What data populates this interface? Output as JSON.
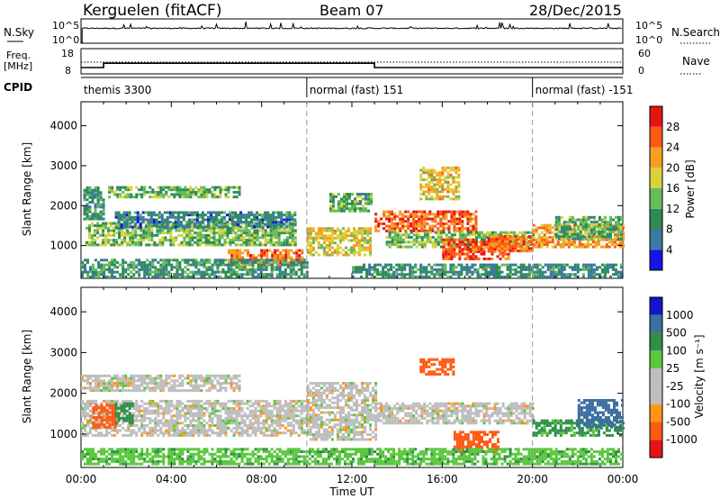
{
  "header": {
    "station": "Kerguelen (fitACF)",
    "beam": "Beam 07",
    "date": "28/Dec/2015"
  },
  "top_panels": {
    "nsky_label": "N.Sky",
    "nsearch_label": "N.Search",
    "nsky_ticks": [
      "10^5",
      "10^0"
    ],
    "freq_label_1": "Freq.",
    "freq_label_2": "[MHz]",
    "freq_ticks": [
      "18",
      "8"
    ],
    "nave_label": "Nave",
    "nave_ticks": [
      "60",
      "0"
    ],
    "cpid_label": "CPID",
    "cpid_modes": [
      {
        "label": "themis 3300",
        "start_hour": 0
      },
      {
        "label": "normal (fast) 151",
        "start_hour": 10
      },
      {
        "label": "normal (fast) -151",
        "start_hour": 20
      }
    ]
  },
  "colors": {
    "power_scale": [
      "#1414e6",
      "#3c78a0",
      "#2e8b57",
      "#66bb5a",
      "#d8d23c",
      "#f5a020",
      "#ff5a14",
      "#e61414"
    ],
    "velocity_scale": [
      "#1414c8",
      "#3c6ea0",
      "#2f8f4a",
      "#5ac83c",
      "#bebebe",
      "#bebebe",
      "#ff9614",
      "#ff5a14",
      "#e61414"
    ]
  },
  "chart_data": [
    {
      "type": "heatmap",
      "panel": "power",
      "ylabel": "Slant Range [km]",
      "xlabel": "Time UT",
      "x_ticks": [
        "00:00",
        "04:00",
        "08:00",
        "12:00",
        "16:00",
        "20:00",
        "00:00"
      ],
      "x_range_hours": [
        0,
        24
      ],
      "y_ticks": [
        1000,
        2000,
        3000,
        4000
      ],
      "ylim": [
        180,
        4600
      ],
      "colorbar_label": "Power [dB]",
      "colorbar_ticks": [
        "4",
        "8",
        "12",
        "16",
        "20",
        "24",
        "28"
      ],
      "colorbar_range": [
        0,
        32
      ],
      "mode_change_hours": [
        10,
        20
      ],
      "echo_regions": [
        {
          "t": [
            0.1,
            1.0
          ],
          "r": [
            1700,
            2500
          ],
          "v": 10
        },
        {
          "t": [
            1.2,
            7.0
          ],
          "r": [
            2250,
            2500
          ],
          "v": 13
        },
        {
          "t": [
            0.2,
            9.5
          ],
          "r": [
            1050,
            1600
          ],
          "v": 14
        },
        {
          "t": [
            1.5,
            9.5
          ],
          "r": [
            1500,
            1900
          ],
          "v": 8
        },
        {
          "t": [
            6.5,
            9.8
          ],
          "r": [
            550,
            950
          ],
          "v": 25
        },
        {
          "t": [
            0.0,
            10.0
          ],
          "r": [
            250,
            700
          ],
          "v": 10
        },
        {
          "t": [
            10.0,
            12.8
          ],
          "r": [
            800,
            1500
          ],
          "v": 19
        },
        {
          "t": [
            11.0,
            12.8
          ],
          "r": [
            1900,
            2350
          ],
          "v": 12
        },
        {
          "t": [
            13.0,
            17.5
          ],
          "r": [
            1400,
            1900
          ],
          "v": 26
        },
        {
          "t": [
            15.0,
            16.8
          ],
          "r": [
            2200,
            3000
          ],
          "v": 20
        },
        {
          "t": [
            13.5,
            20.0
          ],
          "r": [
            1000,
            1400
          ],
          "v": 14
        },
        {
          "t": [
            16.0,
            19.0
          ],
          "r": [
            700,
            1200
          ],
          "v": 27
        },
        {
          "t": [
            18.0,
            20.0
          ],
          "r": [
            900,
            1300
          ],
          "v": 25
        },
        {
          "t": [
            20.0,
            24.0
          ],
          "r": [
            1000,
            1600
          ],
          "v": 22
        },
        {
          "t": [
            21.0,
            24.0
          ],
          "r": [
            1200,
            1800
          ],
          "v": 12
        },
        {
          "t": [
            12.0,
            24.0
          ],
          "r": [
            250,
            600
          ],
          "v": 9
        }
      ]
    },
    {
      "type": "heatmap",
      "panel": "velocity",
      "ylabel": "Slant Range [km]",
      "xlabel": "Time UT",
      "x_ticks": [
        "00:00",
        "04:00",
        "08:00",
        "12:00",
        "16:00",
        "20:00",
        "00:00"
      ],
      "x_range_hours": [
        0,
        24
      ],
      "y_ticks": [
        1000,
        2000,
        3000,
        4000
      ],
      "ylim": [
        180,
        4600
      ],
      "colorbar_label": "Velocity [m s⁻¹]",
      "colorbar_ticks": [
        "1000",
        "500",
        "100",
        "25",
        "-25",
        "-100",
        "-500",
        "-1000"
      ],
      "mode_change_hours": [
        10,
        20
      ],
      "echo_regions": [
        {
          "t": [
            0.0,
            7.0
          ],
          "r": [
            2100,
            2500
          ],
          "v": 0
        },
        {
          "t": [
            0.0,
            10.0
          ],
          "r": [
            1000,
            1900
          ],
          "v": 0
        },
        {
          "t": [
            0.5,
            1.5
          ],
          "r": [
            1200,
            1800
          ],
          "v": -400
        },
        {
          "t": [
            1.5,
            2.3
          ],
          "r": [
            1300,
            1800
          ],
          "v": 150
        },
        {
          "t": [
            10.0,
            13.0
          ],
          "r": [
            900,
            2300
          ],
          "v": 0
        },
        {
          "t": [
            13.0,
            20.0
          ],
          "r": [
            1300,
            1800
          ],
          "v": 0
        },
        {
          "t": [
            15.0,
            16.5
          ],
          "r": [
            2500,
            2900
          ],
          "v": -300
        },
        {
          "t": [
            16.5,
            18.5
          ],
          "r": [
            600,
            1100
          ],
          "v": -200
        },
        {
          "t": [
            20.0,
            24.0
          ],
          "r": [
            1000,
            1400
          ],
          "v": 120
        },
        {
          "t": [
            22.0,
            24.0
          ],
          "r": [
            1200,
            1900
          ],
          "v": 500
        },
        {
          "t": [
            0.0,
            24.0
          ],
          "r": [
            300,
            700
          ],
          "v": 80
        }
      ]
    }
  ]
}
